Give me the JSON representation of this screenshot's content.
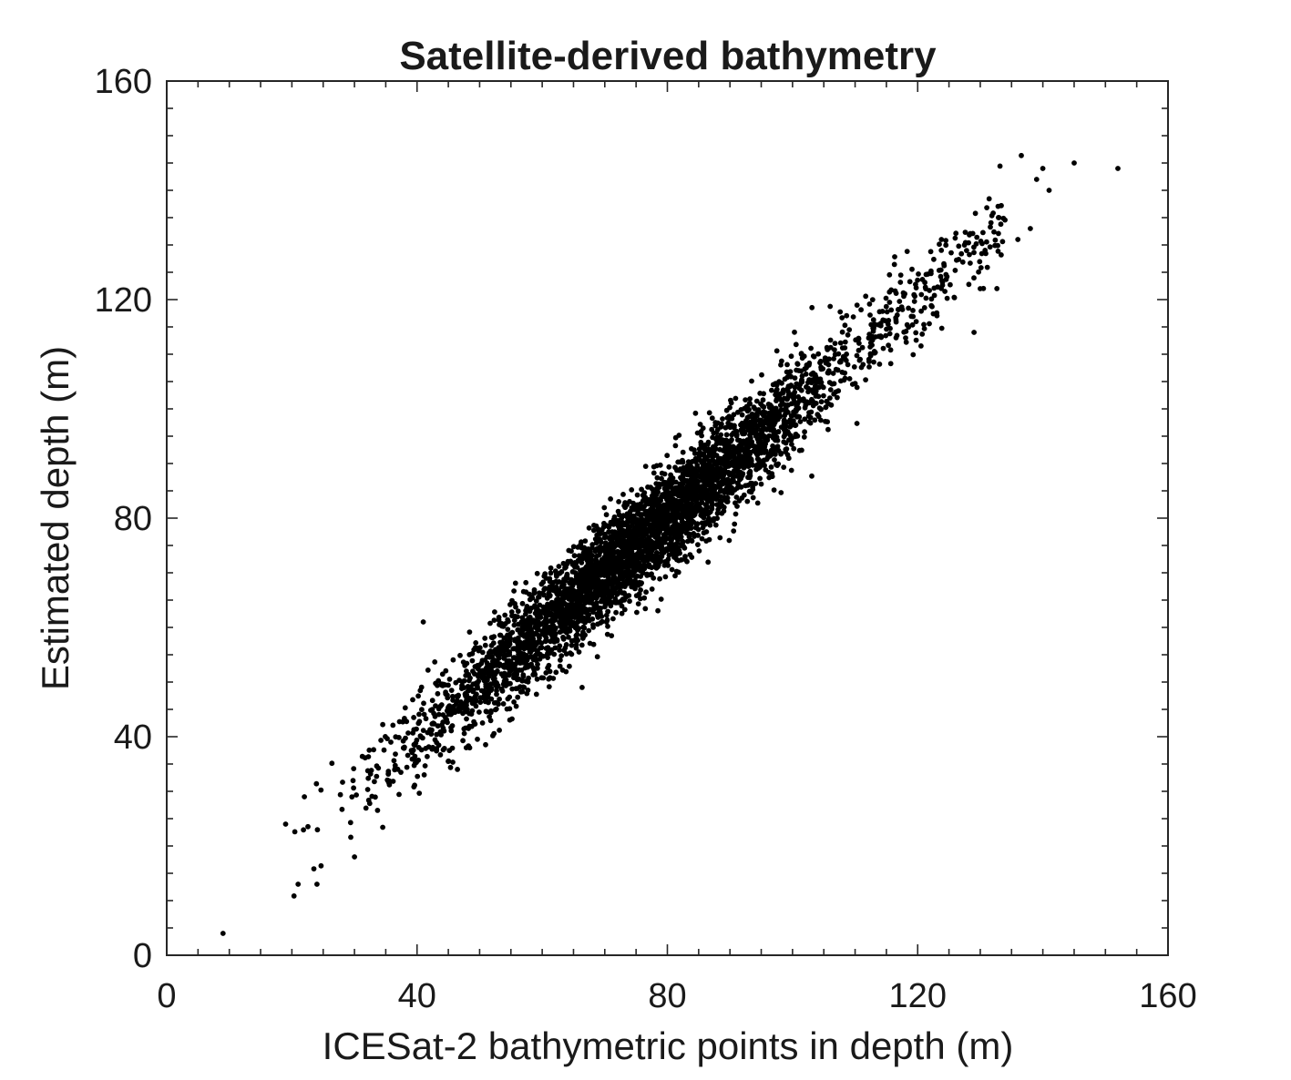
{
  "chart_data": {
    "type": "scatter",
    "title": "Satellite-derived bathymetry",
    "xlabel": "ICESat-2 bathymetric points in depth (m)",
    "ylabel": "Estimated depth (m)",
    "xlim": [
      0,
      160
    ],
    "ylim": [
      0,
      160
    ],
    "xticks": [
      "0",
      "40",
      "80",
      "120",
      "160"
    ],
    "yticks": [
      "0",
      "40",
      "80",
      "120",
      "160"
    ],
    "grid": false,
    "legend": "none",
    "marker_color": "#000000",
    "series": [
      {
        "n_points": 4200,
        "trend": {
          "slope": 1.0,
          "intercept": 0.0
        },
        "x_range": [
          9,
          153
        ],
        "x_density_peak": 75,
        "residual_sd": 4.5,
        "outliers": [
          [
            9,
            4
          ],
          [
            21,
            13
          ],
          [
            24,
            13
          ],
          [
            19,
            24
          ],
          [
            22,
            29
          ],
          [
            30,
            18
          ],
          [
            41,
            61
          ],
          [
            130,
            122
          ],
          [
            129,
            114
          ],
          [
            145,
            145
          ],
          [
            152,
            144
          ],
          [
            141,
            140
          ],
          [
            140,
            144
          ],
          [
            138,
            133
          ],
          [
            136,
            131
          ],
          [
            101,
            107
          ],
          [
            90,
            93
          ],
          [
            133,
            135
          ],
          [
            139,
            142
          ]
        ]
      }
    ]
  }
}
